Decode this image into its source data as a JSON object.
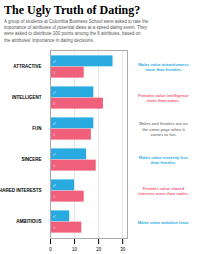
{
  "chart_data": {
    "type": "bar",
    "orientation": "horizontal",
    "title": "The Ugly Truth of Dating?",
    "subtitle": "A group of students at Columbia Business School were asked to rate the\nimportance of attributes of potential dates at a speed dating event. They\nwere asked to distribute 100 points among the 6 attributes, based on\nthe attributes' importance in dating decisions.",
    "categories": [
      "ATTRACTIVE",
      "INTELLIGENT",
      "FUN",
      "SINCERE",
      "SHARED INTERESTS",
      "AMBITIOUS"
    ],
    "series": [
      {
        "name": "♂",
        "color": "#29ABE2",
        "values": [
          26,
          18,
          18,
          15,
          10,
          8
        ]
      },
      {
        "name": "♀",
        "color": "#F0607A",
        "values": [
          14,
          22,
          17,
          19,
          14,
          13
        ]
      }
    ],
    "annotations": [
      {
        "text": "Males value attractiveness\nmore than females.",
        "color": "#29ABE2"
      },
      {
        "text": "Females value intelligence\nmore than males.",
        "color": "#F0607A"
      },
      {
        "text": "Males and females are on\nthe same page when it\ncomes to fun.",
        "color": "#888888"
      },
      {
        "text": "Males value sincerity less\nthan females.",
        "color": "#29ABE2"
      },
      {
        "text": "Females value shared\ninterests more than males.",
        "color": "#F0607A"
      },
      {
        "text": "Males value ambition least.",
        "color": "#29ABE2"
      }
    ],
    "xlim": [
      0,
      32
    ],
    "xticks": [
      0,
      10,
      20,
      30
    ],
    "grid": true
  }
}
